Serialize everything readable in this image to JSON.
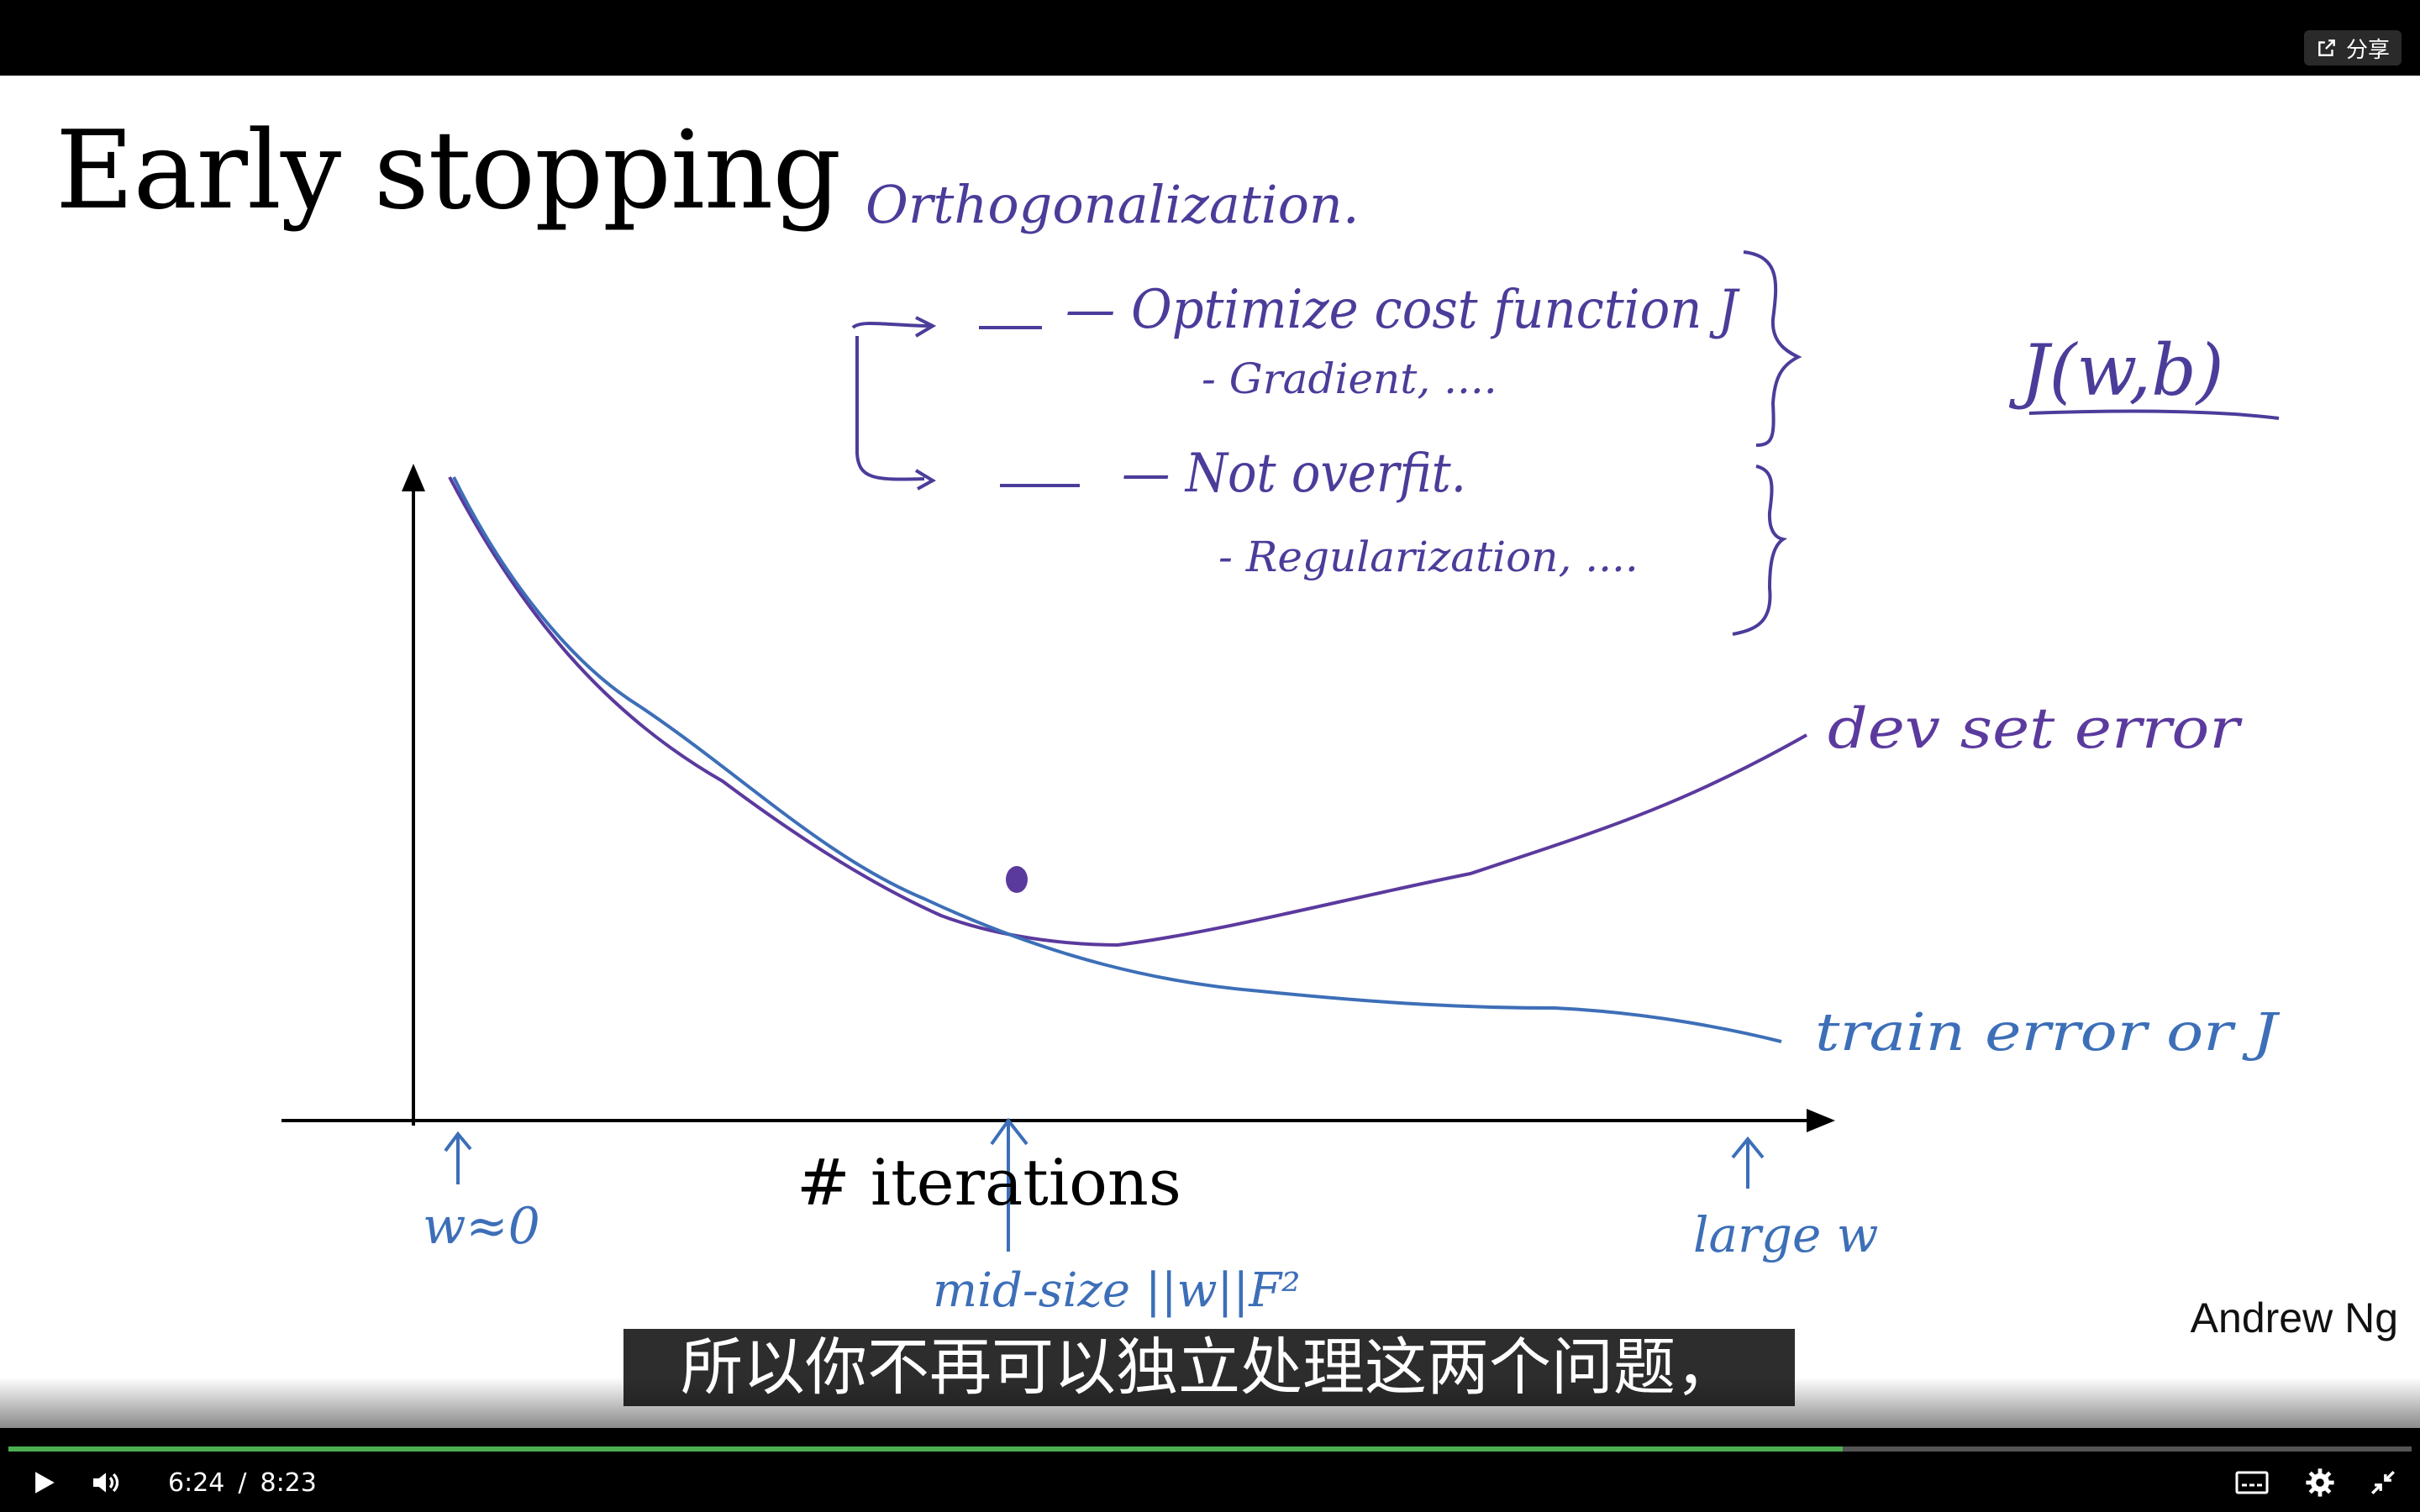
{
  "top_bar": {
    "share_label": "分享",
    "share_icon": "share-icon"
  },
  "slide": {
    "title": "Early stopping",
    "x_axis_label": "# iterations",
    "author": "Andrew Ng",
    "handwriting": {
      "heading": "Orthogonalization.",
      "item1": "— Optimize cost function J",
      "item1_sub": "- Gradient, ....",
      "item2": "— Not overfit.",
      "item2_sub": "- Regularization, ....",
      "cost_notation": "J(w,b)",
      "dev_curve_label": "dev set error",
      "train_curve_label": "train error or J",
      "left_mark": "w≈0",
      "mid_mark": "mid-size ||w||F²",
      "right_mark": "large w"
    },
    "ink_colors": {
      "purple": "#5b3a9e",
      "blue": "#3d6fb8"
    }
  },
  "subtitle": {
    "text": "所以你不再可以独立处理这两个问题，"
  },
  "controls": {
    "current_time": "6:24",
    "separator": "/",
    "duration": "8:23",
    "progress_fraction": 0.7634,
    "progress_color": "#4caf50",
    "icons": [
      "play-icon",
      "volume-icon",
      "captions-icon",
      "settings-icon",
      "exit-fullscreen-icon"
    ]
  }
}
